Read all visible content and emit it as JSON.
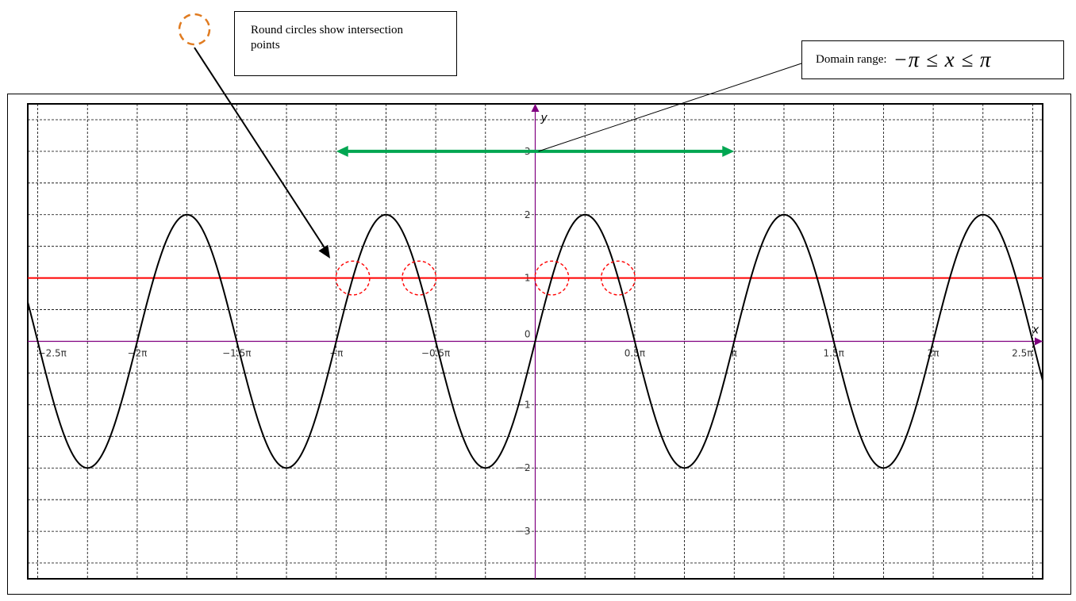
{
  "annotations": {
    "circles_note": "Round circles show intersection points",
    "domain_label": "Domain range:",
    "domain_math": "−π ≤ x ≤ π"
  },
  "colors": {
    "curve": "#000000",
    "line_y1": "#ff0000",
    "domain_arrow": "#00a651",
    "intersection_circle": "#ff0000",
    "legend_circle": "#e07b20",
    "axes": "#800080",
    "grid": "#000000"
  },
  "chart_data": {
    "type": "line",
    "title": "",
    "xlabel": "x",
    "ylabel": "y",
    "x_unit": "π",
    "xlim": [
      -2.55,
      2.55
    ],
    "ylim": [
      -3.75,
      3.75
    ],
    "x_ticks": [
      {
        "value": -2.5,
        "label": "−2.5π"
      },
      {
        "value": -2,
        "label": "−2π"
      },
      {
        "value": -1.5,
        "label": "−1.5π"
      },
      {
        "value": -1,
        "label": "−π"
      },
      {
        "value": -0.5,
        "label": "−0.5π"
      },
      {
        "value": 0,
        "label": "0"
      },
      {
        "value": 0.5,
        "label": "0.5π"
      },
      {
        "value": 1,
        "label": "π"
      },
      {
        "value": 1.5,
        "label": "1.5π"
      },
      {
        "value": 2,
        "label": "2π"
      },
      {
        "value": 2.5,
        "label": "2.5π"
      }
    ],
    "y_ticks": [
      {
        "value": 3,
        "label": "3"
      },
      {
        "value": 2,
        "label": "2"
      },
      {
        "value": 1,
        "label": "1"
      },
      {
        "value": 0,
        "label": "0"
      },
      {
        "value": -1,
        "label": "−1"
      },
      {
        "value": -2,
        "label": "−2"
      },
      {
        "value": -3,
        "label": "−3"
      }
    ],
    "grid": true,
    "series": [
      {
        "kind": "curve",
        "function": "2 sin(2x)",
        "amplitude": 2,
        "frequency": 2
      },
      {
        "kind": "hline",
        "y": 1
      }
    ],
    "domain_arrow": {
      "x_from": -1,
      "x_to": 1,
      "y": 3
    },
    "intersection_points_x": [
      -0.9167,
      -0.5833,
      0.0833,
      0.4167
    ]
  }
}
